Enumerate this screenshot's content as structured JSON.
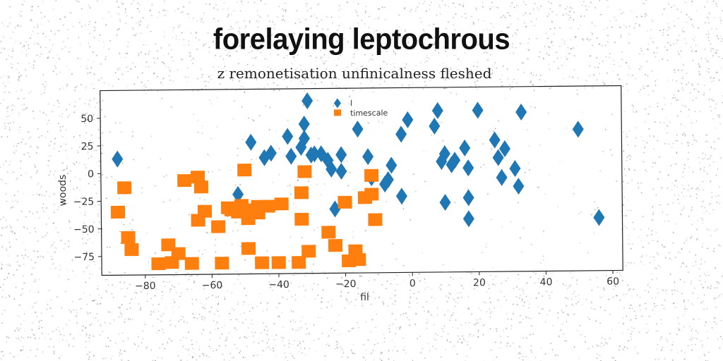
{
  "title": "forelaying leptochrous",
  "subtitle": "z remonetisation unfinicalness fleshed",
  "chart_data": {
    "type": "scatter",
    "title": "forelaying leptochrous",
    "subtitle": "z remonetisation unfinicalness fleshed",
    "xlabel": "fil",
    "ylabel": "woods",
    "xlim": [
      -93,
      63
    ],
    "ylim": [
      -92,
      75
    ],
    "xticks": [
      -80,
      -60,
      -40,
      -20,
      0,
      20,
      40,
      60
    ],
    "yticks": [
      50,
      25,
      0,
      -25,
      -50,
      -75
    ],
    "legend_position": "top-center",
    "grid": false,
    "series": [
      {
        "name": "l",
        "marker": "diamond",
        "color": "#1f77b4",
        "points": [
          [
            -88,
            13
          ],
          [
            -52,
            -20
          ],
          [
            -48,
            27
          ],
          [
            -44,
            13
          ],
          [
            -42,
            17
          ],
          [
            -37,
            32
          ],
          [
            -36,
            14
          ],
          [
            -33,
            22
          ],
          [
            -32,
            43
          ],
          [
            -32,
            30
          ],
          [
            -31,
            64
          ],
          [
            -30,
            15
          ],
          [
            -29,
            16
          ],
          [
            -27,
            16
          ],
          [
            -25,
            10
          ],
          [
            -24,
            2
          ],
          [
            -21,
            0
          ],
          [
            -21,
            15
          ],
          [
            -23,
            -34
          ],
          [
            -16,
            38
          ],
          [
            -13,
            13
          ],
          [
            -12,
            -6
          ],
          [
            -8,
            -12
          ],
          [
            -7,
            -8
          ],
          [
            -6,
            5
          ],
          [
            -3,
            33
          ],
          [
            -3,
            -23
          ],
          [
            -1,
            46
          ],
          [
            7,
            40
          ],
          [
            8,
            54
          ],
          [
            9,
            8
          ],
          [
            10,
            15
          ],
          [
            10,
            -29
          ],
          [
            12,
            5
          ],
          [
            13,
            9
          ],
          [
            16,
            20
          ],
          [
            17,
            2
          ],
          [
            17,
            -25
          ],
          [
            17,
            -44
          ],
          [
            20,
            54
          ],
          [
            25,
            27
          ],
          [
            26,
            11
          ],
          [
            27,
            -7
          ],
          [
            28,
            19
          ],
          [
            31,
            1
          ],
          [
            32,
            -15
          ],
          [
            33,
            52
          ],
          [
            50,
            36
          ],
          [
            56,
            -44
          ]
        ]
      },
      {
        "name": "timescale",
        "marker": "square",
        "color": "#ff7f0e",
        "points": [
          [
            -88,
            -35
          ],
          [
            -86,
            -13
          ],
          [
            -85,
            -58
          ],
          [
            -84,
            -69
          ],
          [
            -76,
            -82
          ],
          [
            -73,
            -65
          ],
          [
            -72,
            -81
          ],
          [
            -70,
            -73
          ],
          [
            -68,
            -7
          ],
          [
            -66,
            -82
          ],
          [
            -64,
            -4
          ],
          [
            -64,
            -43
          ],
          [
            -63,
            -13
          ],
          [
            -62,
            -35
          ],
          [
            -58,
            -49
          ],
          [
            -57,
            -82
          ],
          [
            -55,
            -32
          ],
          [
            -54,
            -34
          ],
          [
            -52,
            -36
          ],
          [
            -51,
            -30
          ],
          [
            -50,
            2
          ],
          [
            -49,
            -69
          ],
          [
            -49,
            -42
          ],
          [
            -48,
            -34
          ],
          [
            -46,
            -37
          ],
          [
            -46,
            -31
          ],
          [
            -45,
            -82
          ],
          [
            -43,
            -31
          ],
          [
            -40,
            -82
          ],
          [
            -39,
            -29
          ],
          [
            -34,
            -82
          ],
          [
            -33,
            -19
          ],
          [
            -33,
            -43
          ],
          [
            -32,
            0
          ],
          [
            -31,
            -72
          ],
          [
            -25,
            -55
          ],
          [
            -23,
            -67
          ],
          [
            -20,
            -28
          ],
          [
            -19,
            -81
          ],
          [
            -17,
            -72
          ],
          [
            -16,
            -80
          ],
          [
            -14,
            -24
          ],
          [
            -12,
            -4
          ],
          [
            -12,
            -21
          ],
          [
            -11,
            -44
          ]
        ]
      }
    ]
  }
}
